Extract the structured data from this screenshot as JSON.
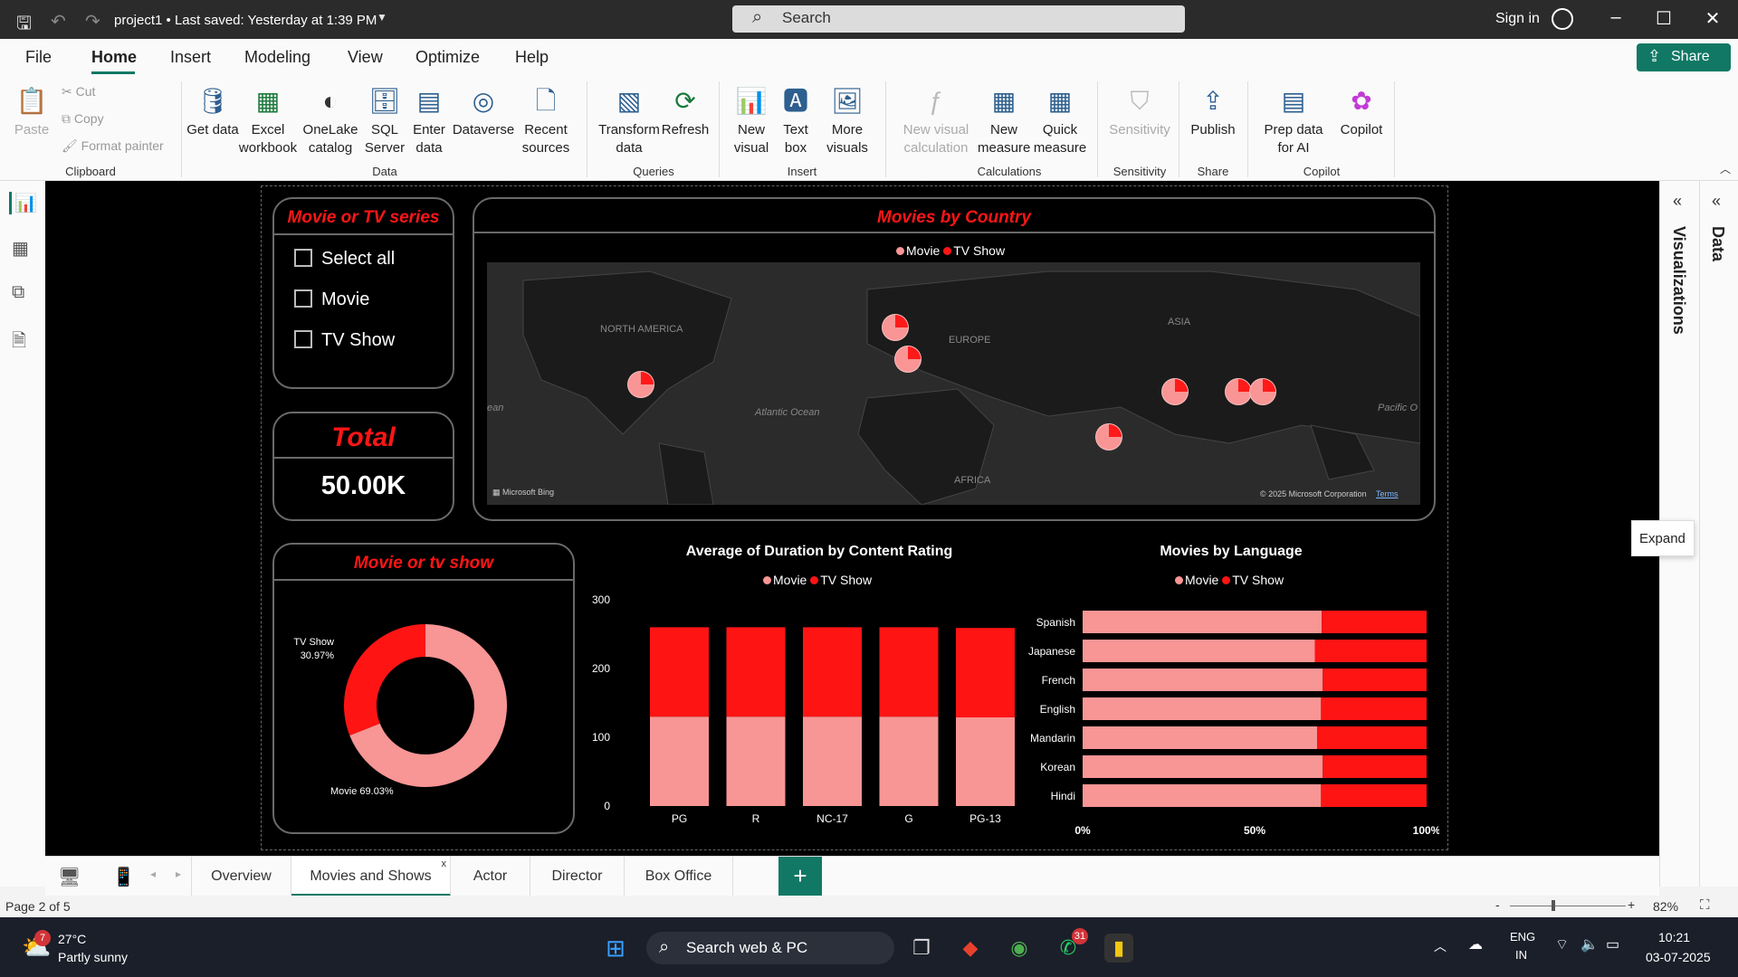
{
  "app": {
    "doc_title": "project1 • Last saved: Yesterday at 1:39 PM",
    "search_placeholder": "Search",
    "sign_in": "Sign in"
  },
  "menu": [
    "File",
    "Home",
    "Insert",
    "Modeling",
    "View",
    "Optimize",
    "Help"
  ],
  "share": "Share",
  "ribbon": {
    "clipboard": {
      "paste": "Paste",
      "cut": "Cut",
      "copy": "Copy",
      "format_painter": "Format painter",
      "group": "Clipboard"
    },
    "data": {
      "get_data": "Get data",
      "excel": "Excel workbook",
      "onelake": "OneLake catalog",
      "sql": "SQL Server",
      "enter": "Enter data",
      "dataverse": "Dataverse",
      "recent": "Recent sources",
      "group": "Data"
    },
    "queries": {
      "transform": "Transform data",
      "refresh": "Refresh",
      "group": "Queries"
    },
    "insert": {
      "new_visual": "New visual",
      "text_box": "Text box",
      "more_visuals": "More visuals",
      "group": "Insert"
    },
    "calculations": {
      "new_visual_calc": "New visual calculation",
      "new_measure": "New measure",
      "quick_measure": "Quick measure",
      "group": "Calculations"
    },
    "sensitivity": {
      "sensitivity": "Sensitivity",
      "group": "Sensitivity"
    },
    "share": {
      "publish": "Publish",
      "group": "Share"
    },
    "copilot": {
      "prep": "Prep data for AI",
      "copilot": "Copilot",
      "group": "Copilot"
    }
  },
  "panes": {
    "visualizations": "Visualizations",
    "data": "Data",
    "expand_tip": "Expand"
  },
  "report": {
    "slicer": {
      "title": "Movie or TV series",
      "items": [
        "Select all",
        "Movie",
        "TV Show"
      ]
    },
    "total": {
      "title": "Total",
      "value": "50.00K"
    },
    "map": {
      "title": "Movies by Country",
      "legend": [
        "Movie",
        "TV Show"
      ],
      "labels": {
        "na": "NORTH AMERICA",
        "europe": "EUROPE",
        "asia": "ASIA",
        "atlantic": "Atlantic Ocean",
        "pacific": "Pacific O",
        "africa": "AFRICA",
        "ean": "ean"
      },
      "attribution": "Microsoft Bing",
      "copyright": "© 2025 Microsoft Corporation",
      "terms": "Terms"
    },
    "donut": {
      "title": "Movie or tv show",
      "tv_label": "TV Show",
      "tv_pct": "30.97%",
      "movie_label": "Movie 69.03%"
    },
    "duration": {
      "title": "Average of Duration by Content Rating",
      "legend": [
        "Movie",
        "TV Show"
      ]
    },
    "language": {
      "title": "Movies by Language",
      "legend": [
        "Movie",
        "TV Show"
      ]
    }
  },
  "chart_data": [
    {
      "type": "pie",
      "title": "Movie or tv show",
      "labels": [
        "Movie",
        "TV Show"
      ],
      "values": [
        69.03,
        30.97
      ],
      "colors": [
        "#f89595",
        "#ff1414"
      ]
    },
    {
      "type": "bar",
      "stacked": true,
      "title": "Average of Duration by Content Rating",
      "categories": [
        "PG",
        "R",
        "NC-17",
        "G",
        "PG-13"
      ],
      "series": [
        {
          "name": "Movie",
          "values": [
            130,
            130,
            130,
            130,
            129
          ]
        },
        {
          "name": "TV Show",
          "values": [
            130,
            130,
            130,
            130,
            130
          ]
        }
      ],
      "ylim": [
        0,
        300
      ],
      "yticks": [
        "0",
        "100",
        "200",
        "300"
      ],
      "colors": [
        "#f89595",
        "#ff1414"
      ]
    },
    {
      "type": "bar",
      "orientation": "horizontal",
      "stacked_percent": true,
      "title": "Movies by Language",
      "categories": [
        "Spanish",
        "Japanese",
        "French",
        "English",
        "Mandarin",
        "Korean",
        "Hindi"
      ],
      "series": [
        {
          "name": "Movie",
          "values": [
            69.5,
            67.5,
            69.8,
            69.3,
            68.2,
            69.8,
            69.3
          ]
        },
        {
          "name": "TV Show",
          "values": [
            30.5,
            32.5,
            30.2,
            30.7,
            31.8,
            30.2,
            30.7
          ]
        }
      ],
      "xticks": [
        "0%",
        "50%",
        "100%"
      ],
      "colors": [
        "#f89595",
        "#ff1414"
      ]
    }
  ],
  "tabs": [
    "Overview",
    "Movies and Shows",
    "Actor",
    "Director",
    "Box Office"
  ],
  "status": {
    "page": "Page 2 of 5",
    "zoom": "82%"
  },
  "taskbar": {
    "temp": "27°C",
    "weather": "Partly sunny",
    "weather_badge": "7",
    "search": "Search web & PC",
    "whatsapp_badge": "31",
    "lang1": "ENG",
    "lang2": "IN",
    "time": "10:21",
    "date": "03-07-2025"
  }
}
